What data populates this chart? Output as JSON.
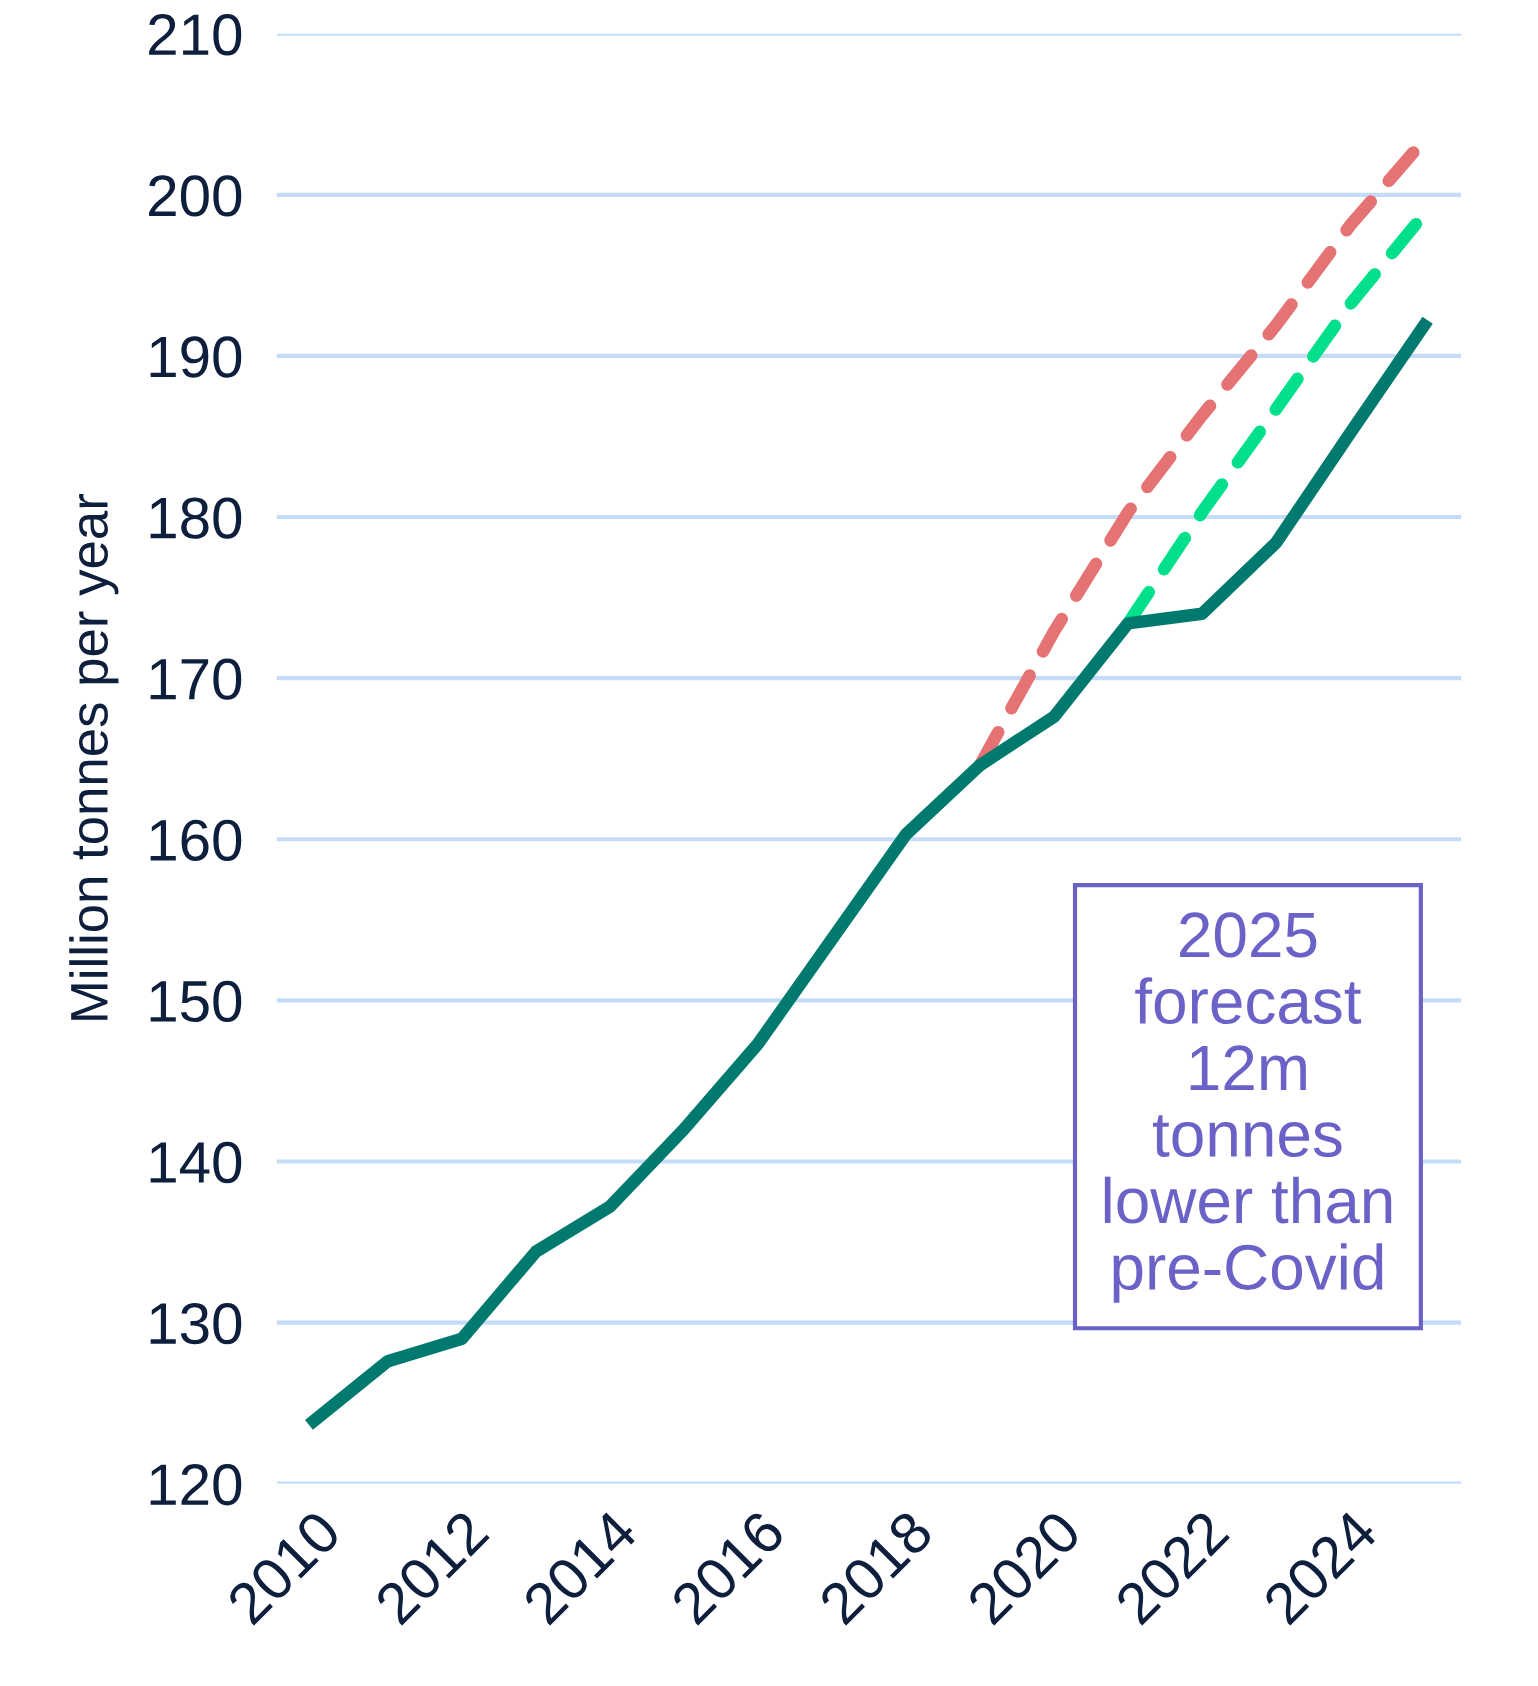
{
  "chart_data": {
    "type": "line",
    "ylabel": "Million tonnes per year",
    "x": [
      2010,
      2011,
      2012,
      2013,
      2014,
      2015,
      2016,
      2017,
      2018,
      2019,
      2020,
      2021,
      2022,
      2023,
      2024,
      2025
    ],
    "series": [
      {
        "color": "#e57373",
        "line_style": "dashed",
        "x": [
          2019,
          2020,
          2021,
          2022,
          2023,
          2024,
          2025
        ],
        "values": [
          164.6,
          172.9,
          180.3,
          186.3,
          191.9,
          198.1,
          203.4
        ]
      },
      {
        "color": "#00e08a",
        "line_style": "dashed",
        "x": [
          2021,
          2022,
          2023,
          2024,
          2025
        ],
        "values": [
          173.4,
          180.3,
          186.7,
          193.2,
          198.8
        ]
      },
      {
        "color": "#007a6e",
        "line_style": "solid",
        "values": [
          123.9,
          127.6,
          129.0,
          134.4,
          137.2,
          142.0,
          147.3,
          153.8,
          160.3,
          164.6,
          167.6,
          173.4,
          174.0,
          178.4,
          185.2,
          191.9
        ]
      }
    ],
    "xlim": [
      2009.5,
      2025.5
    ],
    "xticks": [
      2010,
      2012,
      2014,
      2016,
      2018,
      2020,
      2022,
      2024
    ],
    "ylim": [
      120,
      210
    ],
    "yticks": [
      120,
      130,
      140,
      150,
      160,
      170,
      180,
      190,
      200,
      210
    ],
    "grid": "y",
    "annotations": [
      "2025\nforecast\n12m\ntonnes\nlower than\npre-Covid"
    ]
  }
}
